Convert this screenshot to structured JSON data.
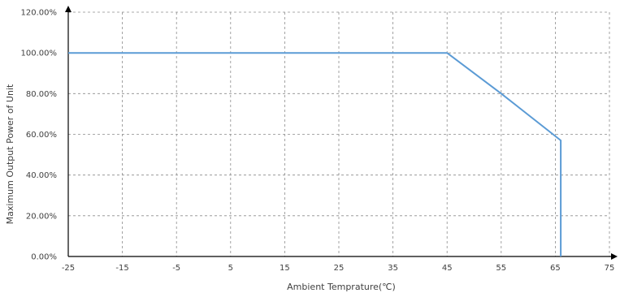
{
  "chart_data": {
    "type": "line",
    "xlabel": "Ambient Temprature(℃)",
    "ylabel": "Maximum Output Power of Unit",
    "xlim": [
      -25,
      75
    ],
    "ylim": [
      0,
      120
    ],
    "x_ticks": [
      -25,
      -15,
      -5,
      5,
      15,
      25,
      35,
      45,
      55,
      65,
      75
    ],
    "y_ticks": [
      0,
      20,
      40,
      60,
      80,
      100,
      120
    ],
    "x_tick_labels": [
      "-25",
      "-15",
      "-5",
      "5",
      "15",
      "25",
      "35",
      "45",
      "55",
      "65",
      "75"
    ],
    "y_tick_labels": [
      "0.00%",
      "20.00%",
      "40.00%",
      "60.00%",
      "80.00%",
      "100.00%",
      "120.00%"
    ],
    "grid": true,
    "series": [
      {
        "color": "#5b9bd5",
        "points": [
          {
            "x": -25,
            "y": 100
          },
          {
            "x": 45,
            "y": 100
          },
          {
            "x": 55,
            "y": 80
          },
          {
            "x": 66,
            "y": 57
          },
          {
            "x": 66,
            "y": 0
          }
        ]
      }
    ]
  }
}
